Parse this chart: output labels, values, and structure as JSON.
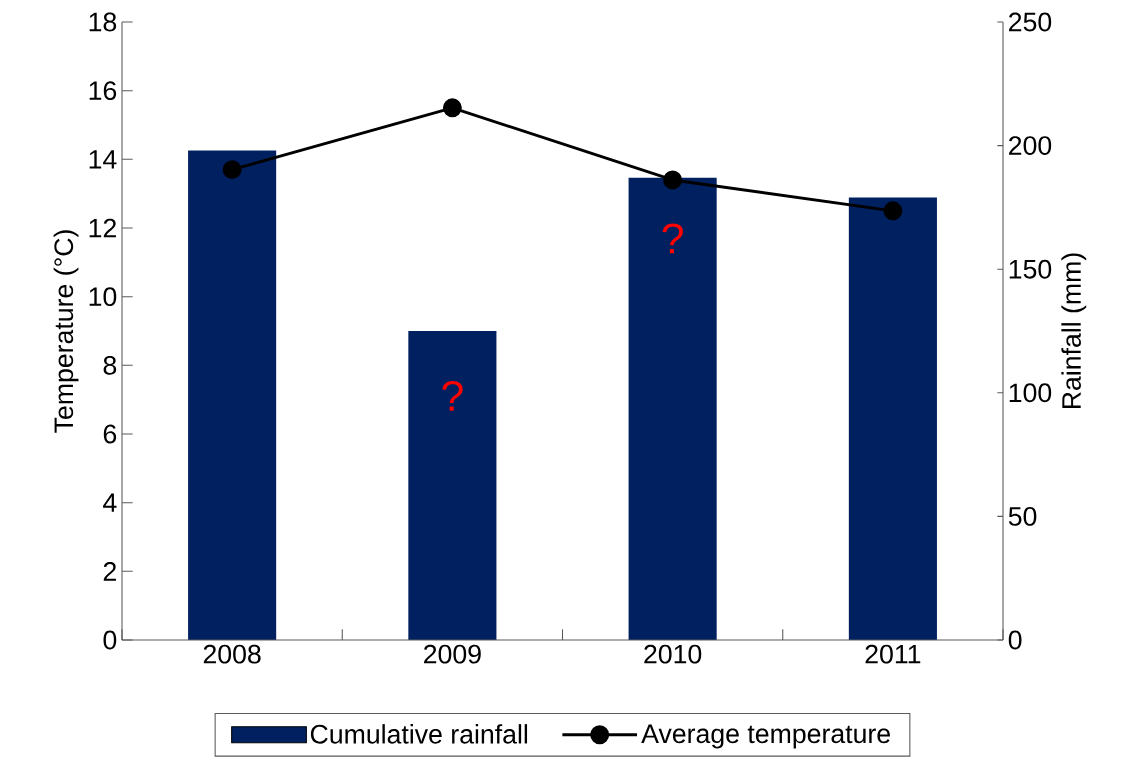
{
  "chart_data": {
    "type": "bar",
    "categories": [
      "2008",
      "2009",
      "2010",
      "2011"
    ],
    "series": [
      {
        "name": "Cumulative rainfall",
        "axis": "y2",
        "color": "#002060",
        "values": [
          198,
          125,
          187,
          179
        ]
      },
      {
        "name": "Average temperature",
        "type": "line",
        "color": "#000000",
        "marker": "circle",
        "values": [
          13.7,
          15.5,
          13.4,
          12.5
        ]
      }
    ],
    "ylabel": "Temperature (°C)",
    "y2label": "Rainfall (mm)",
    "ylim": [
      0,
      18
    ],
    "yticks": [
      0,
      2,
      4,
      6,
      8,
      10,
      12,
      14,
      16,
      18
    ],
    "y2lim": [
      0,
      250
    ],
    "y2ticks": [
      0,
      50,
      100,
      150,
      200,
      250
    ],
    "legend": "bottom",
    "annotations": [
      "?",
      "?"
    ]
  }
}
